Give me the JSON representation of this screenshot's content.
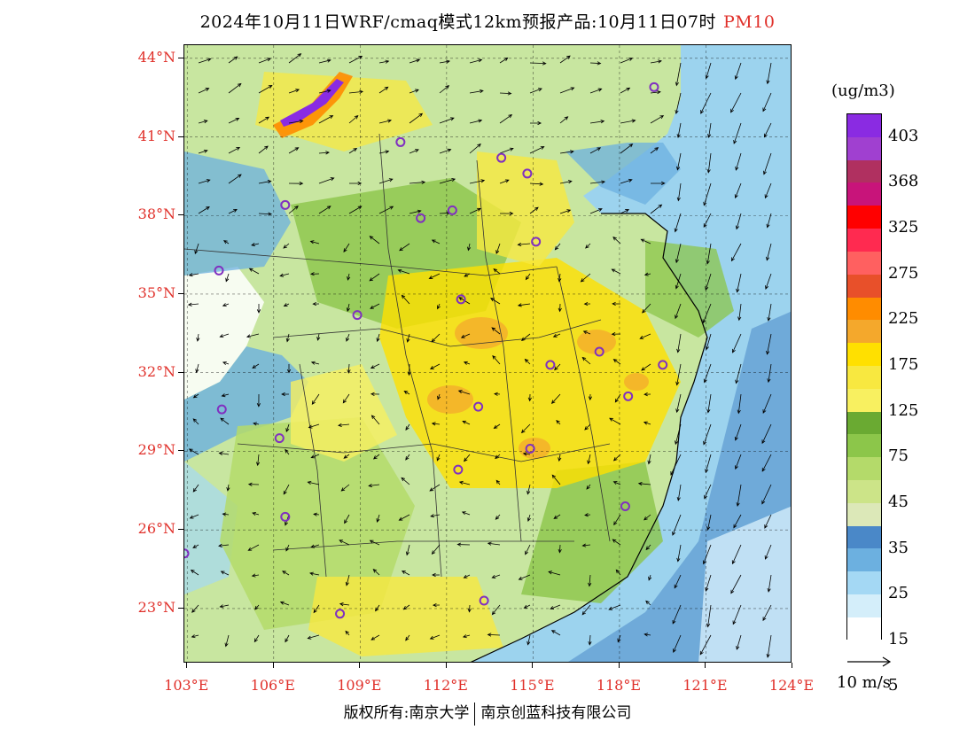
{
  "title": {
    "main": "2024年10月11日WRF/cmaq模式12km预报产品:10月11日07时",
    "pollutant": "PM10"
  },
  "map": {
    "lat_labels": [
      "44°N",
      "41°N",
      "38°N",
      "35°N",
      "32°N",
      "29°N",
      "26°N",
      "23°N"
    ],
    "lon_labels": [
      "103°E",
      "106°E",
      "109°E",
      "112°E",
      "115°E",
      "118°E",
      "121°E",
      "124°E"
    ],
    "lat_values": [
      44,
      41,
      38,
      35,
      32,
      29,
      26,
      23
    ],
    "lon_values": [
      103,
      106,
      109,
      112,
      115,
      118,
      121,
      124
    ],
    "lon_range": [
      102.9,
      124.0
    ],
    "lat_range": [
      20.9,
      44.5
    ],
    "ocean_color": "#9cd3ee",
    "land_base_color": "#c8e6a0",
    "station_color": "#8030c0"
  },
  "legend": {
    "unit": "(ug/m3)",
    "colors": [
      "#8a2be2",
      "#a040d0",
      "#b03060",
      "#c8147a",
      "#ff0000",
      "#ff2a50",
      "#ff6060",
      "#e8502a",
      "#ff8c00",
      "#f4a82c",
      "#ffe000",
      "#f8e840",
      "#f8f060",
      "#6aaa32",
      "#8cc64a",
      "#b4da6a",
      "#cce488",
      "#dce8b8",
      "#4a88c8",
      "#6cb0e0",
      "#a4d8f4",
      "#d4eefa",
      "#ffffff"
    ],
    "labels": [
      "403",
      "368",
      "325",
      "275",
      "225",
      "175",
      "125",
      "75",
      "45",
      "35",
      "25",
      "15",
      "5"
    ]
  },
  "wind_reference": {
    "label": "10 m/s"
  },
  "footer": {
    "copyright": "版权所有:南京大学",
    "company": "南京创蓝科技有限公司"
  }
}
